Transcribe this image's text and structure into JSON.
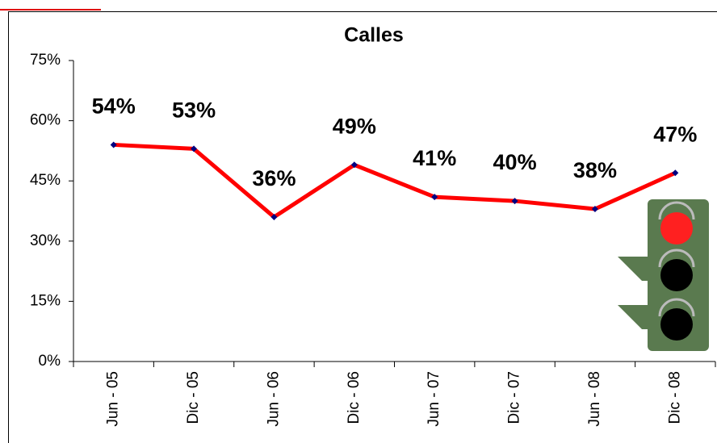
{
  "chart_data": {
    "type": "line",
    "title": "Calles",
    "categories": [
      "Jun - 05",
      "Dic - 05",
      "Jun - 06",
      "Dic - 06",
      "Jun - 07",
      "Dic - 07",
      "Jun - 08",
      "Dic - 08"
    ],
    "series": [
      {
        "name": "Calles",
        "color": "#ff0000",
        "marker_color": "#000080",
        "values": [
          54,
          53,
          36,
          49,
          41,
          40,
          38,
          47
        ],
        "value_labels": [
          "54%",
          "53%",
          "36%",
          "49%",
          "41%",
          "40%",
          "38%",
          "47%"
        ]
      }
    ],
    "ylim": [
      0,
      75
    ],
    "yticks": [
      {
        "value": 0,
        "label": "0%"
      },
      {
        "value": 15,
        "label": "15%"
      },
      {
        "value": 30,
        "label": "30%"
      },
      {
        "value": 45,
        "label": "45%"
      },
      {
        "value": 60,
        "label": "60%"
      },
      {
        "value": 75,
        "label": "75%"
      }
    ],
    "grid": false
  }
}
